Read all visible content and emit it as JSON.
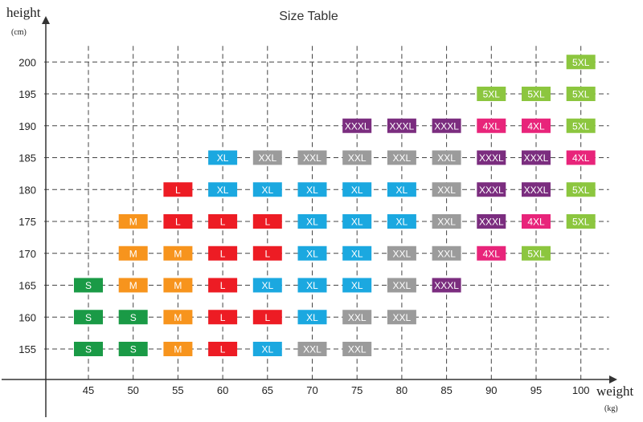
{
  "chart_data": {
    "type": "table",
    "title": "Size Table",
    "xlabel": "weight",
    "xunit": "(kg)",
    "ylabel": "height",
    "yunit": "(cm)",
    "x_ticks": [
      45,
      50,
      55,
      60,
      65,
      70,
      75,
      80,
      85,
      90,
      95,
      100
    ],
    "y_ticks": [
      155,
      160,
      165,
      170,
      175,
      180,
      185,
      190,
      195,
      200
    ],
    "grid": true,
    "size_colors": {
      "S": "#1a9a46",
      "M": "#f7941d",
      "L": "#ed1c24",
      "XL": "#1ba8e0",
      "XXL": "#9b9b9b",
      "XXXL": "#7b2d7f",
      "4XL": "#e8247a",
      "5XL": "#8cc63f"
    },
    "cells": [
      {
        "weight": 45,
        "height": 155,
        "size": "S"
      },
      {
        "weight": 45,
        "height": 160,
        "size": "S"
      },
      {
        "weight": 45,
        "height": 165,
        "size": "S"
      },
      {
        "weight": 50,
        "height": 155,
        "size": "S"
      },
      {
        "weight": 50,
        "height": 160,
        "size": "S"
      },
      {
        "weight": 50,
        "height": 165,
        "size": "M"
      },
      {
        "weight": 50,
        "height": 170,
        "size": "M"
      },
      {
        "weight": 50,
        "height": 175,
        "size": "M"
      },
      {
        "weight": 55,
        "height": 155,
        "size": "M"
      },
      {
        "weight": 55,
        "height": 160,
        "size": "M"
      },
      {
        "weight": 55,
        "height": 165,
        "size": "M"
      },
      {
        "weight": 55,
        "height": 170,
        "size": "M"
      },
      {
        "weight": 55,
        "height": 175,
        "size": "L"
      },
      {
        "weight": 55,
        "height": 180,
        "size": "L"
      },
      {
        "weight": 60,
        "height": 155,
        "size": "L"
      },
      {
        "weight": 60,
        "height": 160,
        "size": "L"
      },
      {
        "weight": 60,
        "height": 165,
        "size": "L"
      },
      {
        "weight": 60,
        "height": 170,
        "size": "L"
      },
      {
        "weight": 60,
        "height": 175,
        "size": "L"
      },
      {
        "weight": 60,
        "height": 180,
        "size": "XL"
      },
      {
        "weight": 60,
        "height": 185,
        "size": "XL"
      },
      {
        "weight": 65,
        "height": 155,
        "size": "XL"
      },
      {
        "weight": 65,
        "height": 160,
        "size": "L"
      },
      {
        "weight": 65,
        "height": 165,
        "size": "XL"
      },
      {
        "weight": 65,
        "height": 170,
        "size": "L"
      },
      {
        "weight": 65,
        "height": 175,
        "size": "L"
      },
      {
        "weight": 65,
        "height": 180,
        "size": "XL"
      },
      {
        "weight": 65,
        "height": 185,
        "size": "XXL"
      },
      {
        "weight": 70,
        "height": 155,
        "size": "XXL"
      },
      {
        "weight": 70,
        "height": 160,
        "size": "XL"
      },
      {
        "weight": 70,
        "height": 165,
        "size": "XL"
      },
      {
        "weight": 70,
        "height": 170,
        "size": "XL"
      },
      {
        "weight": 70,
        "height": 175,
        "size": "XL"
      },
      {
        "weight": 70,
        "height": 180,
        "size": "XL"
      },
      {
        "weight": 70,
        "height": 185,
        "size": "XXL"
      },
      {
        "weight": 75,
        "height": 155,
        "size": "XXL"
      },
      {
        "weight": 75,
        "height": 160,
        "size": "XXL"
      },
      {
        "weight": 75,
        "height": 165,
        "size": "XL"
      },
      {
        "weight": 75,
        "height": 170,
        "size": "XL"
      },
      {
        "weight": 75,
        "height": 175,
        "size": "XL"
      },
      {
        "weight": 75,
        "height": 180,
        "size": "XL"
      },
      {
        "weight": 75,
        "height": 185,
        "size": "XXL"
      },
      {
        "weight": 75,
        "height": 190,
        "size": "XXXL"
      },
      {
        "weight": 80,
        "height": 160,
        "size": "XXL"
      },
      {
        "weight": 80,
        "height": 165,
        "size": "XXL"
      },
      {
        "weight": 80,
        "height": 170,
        "size": "XXL"
      },
      {
        "weight": 80,
        "height": 175,
        "size": "XL"
      },
      {
        "weight": 80,
        "height": 180,
        "size": "XL"
      },
      {
        "weight": 80,
        "height": 185,
        "size": "XXL"
      },
      {
        "weight": 80,
        "height": 190,
        "size": "XXXL"
      },
      {
        "weight": 85,
        "height": 165,
        "size": "XXXL"
      },
      {
        "weight": 85,
        "height": 170,
        "size": "XXL"
      },
      {
        "weight": 85,
        "height": 175,
        "size": "XXL"
      },
      {
        "weight": 85,
        "height": 180,
        "size": "XXL"
      },
      {
        "weight": 85,
        "height": 185,
        "size": "XXL"
      },
      {
        "weight": 85,
        "height": 190,
        "size": "XXXL"
      },
      {
        "weight": 90,
        "height": 170,
        "size": "4XL"
      },
      {
        "weight": 90,
        "height": 175,
        "size": "XXXL"
      },
      {
        "weight": 90,
        "height": 180,
        "size": "XXXL"
      },
      {
        "weight": 90,
        "height": 185,
        "size": "XXXL"
      },
      {
        "weight": 90,
        "height": 190,
        "size": "4XL"
      },
      {
        "weight": 90,
        "height": 195,
        "size": "5XL"
      },
      {
        "weight": 95,
        "height": 170,
        "size": "5XL"
      },
      {
        "weight": 95,
        "height": 175,
        "size": "4XL"
      },
      {
        "weight": 95,
        "height": 180,
        "size": "XXXL"
      },
      {
        "weight": 95,
        "height": 185,
        "size": "XXXL"
      },
      {
        "weight": 95,
        "height": 190,
        "size": "4XL"
      },
      {
        "weight": 95,
        "height": 195,
        "size": "5XL"
      },
      {
        "weight": 100,
        "height": 175,
        "size": "5XL"
      },
      {
        "weight": 100,
        "height": 180,
        "size": "5XL"
      },
      {
        "weight": 100,
        "height": 185,
        "size": "4XL"
      },
      {
        "weight": 100,
        "height": 190,
        "size": "5XL"
      },
      {
        "weight": 100,
        "height": 195,
        "size": "5XL"
      },
      {
        "weight": 100,
        "height": 200,
        "size": "5XL"
      }
    ]
  }
}
